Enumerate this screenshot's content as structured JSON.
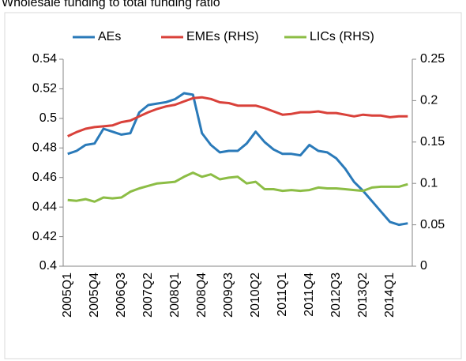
{
  "chart_data": {
    "type": "line",
    "title": "Wholesale funding to total funding ratio",
    "categories": [
      "2005Q1",
      null,
      null,
      "2005Q4",
      null,
      null,
      "2006Q3",
      null,
      null,
      "2007Q2",
      null,
      null,
      "2008Q1",
      null,
      null,
      "2008Q4",
      null,
      null,
      "2009Q3",
      null,
      null,
      "2010Q2",
      null,
      null,
      "2011Q1",
      null,
      null,
      "2011Q4",
      null,
      null,
      "2012Q3",
      null,
      null,
      "2013Q2",
      null,
      null,
      "2014Q1",
      null,
      null
    ],
    "series": [
      {
        "name": "AEs",
        "color": "#2a7ab9",
        "axis": "y",
        "values": [
          0.476,
          0.478,
          0.482,
          0.483,
          0.493,
          0.491,
          0.489,
          0.49,
          0.504,
          0.509,
          0.51,
          0.511,
          0.513,
          0.517,
          0.516,
          0.49,
          0.482,
          0.477,
          0.478,
          0.478,
          0.483,
          0.491,
          0.484,
          0.479,
          0.476,
          0.476,
          0.475,
          0.482,
          0.478,
          0.477,
          0.473,
          0.466,
          0.457,
          0.451,
          0.444,
          0.437,
          0.43,
          0.428,
          0.429
        ]
      },
      {
        "name": "EMEs (RHS)",
        "color": "#d9413a",
        "axis": "y2",
        "values": [
          0.157,
          0.162,
          0.166,
          0.168,
          0.169,
          0.17,
          0.174,
          0.176,
          0.181,
          0.186,
          0.19,
          0.193,
          0.195,
          0.199,
          0.203,
          0.204,
          0.202,
          0.198,
          0.197,
          0.194,
          0.194,
          0.194,
          0.191,
          0.187,
          0.183,
          0.184,
          0.186,
          0.186,
          0.187,
          0.185,
          0.185,
          0.183,
          0.181,
          0.183,
          0.182,
          0.182,
          0.18,
          0.181,
          0.181
        ]
      },
      {
        "name": "LICs (RHS)",
        "color": "#8cbd45",
        "axis": "y2",
        "values": [
          0.08,
          0.079,
          0.081,
          0.078,
          0.083,
          0.082,
          0.083,
          0.09,
          0.094,
          0.097,
          0.1,
          0.101,
          0.102,
          0.108,
          0.113,
          0.108,
          0.111,
          0.105,
          0.107,
          0.108,
          0.1,
          0.102,
          0.093,
          0.093,
          0.091,
          0.092,
          0.091,
          0.092,
          0.095,
          0.094,
          0.094,
          0.093,
          0.092,
          0.091,
          0.095,
          0.096,
          0.096,
          0.096,
          0.099
        ]
      }
    ],
    "ylim": [
      0.4,
      0.54
    ],
    "yticks": [
      0.4,
      0.42,
      0.44,
      0.46,
      0.48,
      0.5,
      0.52,
      0.54
    ],
    "y2lim": [
      0,
      0.25
    ],
    "y2ticks": [
      0,
      0.05,
      0.1,
      0.15,
      0.2,
      0.25
    ],
    "legend": "top",
    "grid": false
  }
}
